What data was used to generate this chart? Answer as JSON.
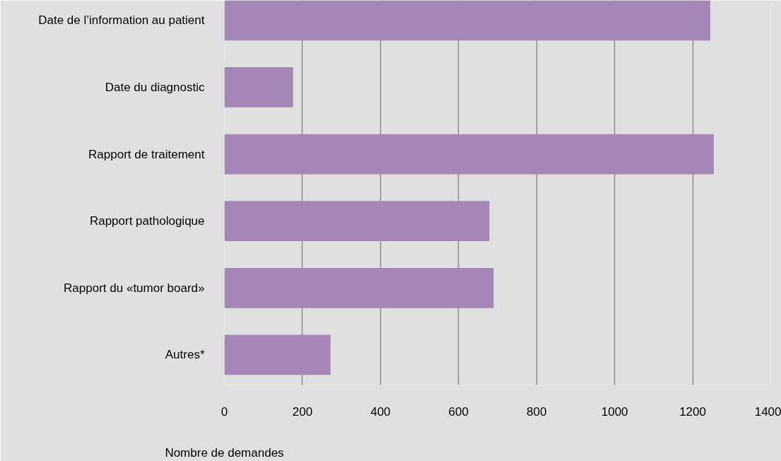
{
  "chart_data": {
    "type": "bar",
    "orientation": "horizontal",
    "xlabel": "Nombre de demandes",
    "categories": [
      "Date de l’information au patient",
      "Date du diagnostic",
      "Rapport de traitement",
      "Rapport pathologique",
      "Rapport du «tumor board»",
      "Autres*"
    ],
    "values": [
      1245,
      176,
      1254,
      679,
      690,
      272
    ],
    "color": "#a487b6",
    "xlim": [
      0,
      1400
    ],
    "xticks": [
      0,
      200,
      400,
      600,
      800,
      1000,
      1200,
      1400
    ],
    "grid": "x"
  }
}
